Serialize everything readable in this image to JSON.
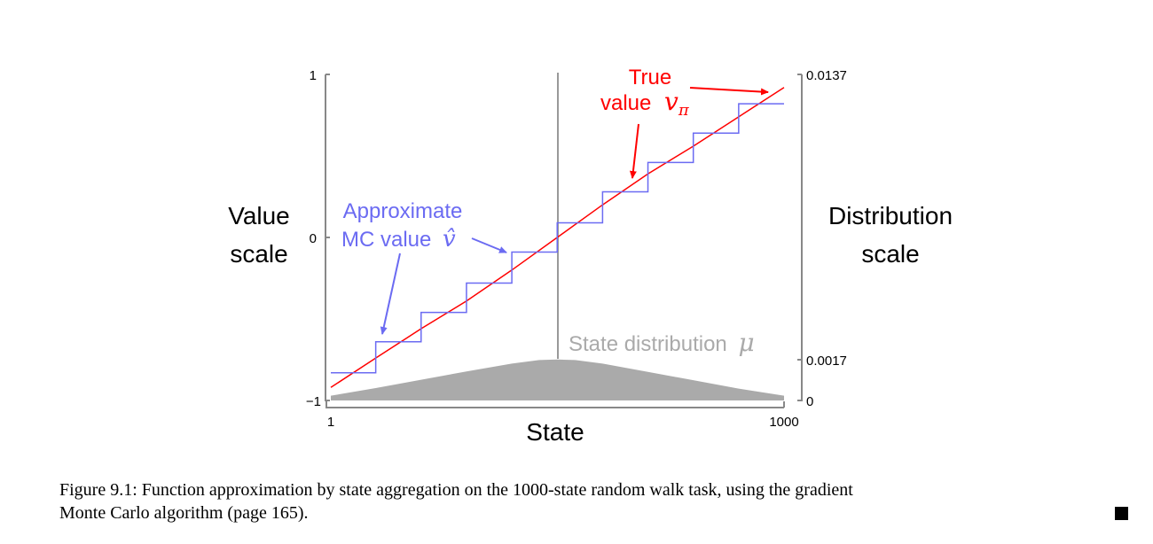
{
  "chart_data": {
    "type": "line",
    "xlabel": "State",
    "x_ticks": [
      "1",
      "1000"
    ],
    "xlim": [
      1,
      1000
    ],
    "left_axis": {
      "label_line1": "Value",
      "label_line2": "scale",
      "ticks": [
        "1",
        "0",
        "−1"
      ],
      "ylim": [
        -1,
        1
      ]
    },
    "right_axis": {
      "label_line1": "Distribution",
      "label_line2": "scale",
      "ticks": [
        "0.0137",
        "0.0017",
        "0"
      ],
      "tick_values": [
        0.0137,
        0.0017,
        0
      ],
      "ylim": [
        0,
        0.0137
      ]
    },
    "series": [
      {
        "name": "True value vπ",
        "label_line1": "True",
        "label_line2": "value",
        "label_math": "v",
        "label_sub": "π",
        "color": "#ff0000",
        "x": [
          1,
          100,
          200,
          300,
          400,
          500,
          600,
          700,
          800,
          900,
          1000
        ],
        "y": [
          -0.92,
          -0.74,
          -0.56,
          -0.39,
          -0.2,
          0,
          0.2,
          0.39,
          0.56,
          0.74,
          0.92
        ]
      },
      {
        "name": "Approximate MC value v̂",
        "label_line1": "Approximate",
        "label_line2": "MC value",
        "label_math": "v̂",
        "color": "#6b6bf2",
        "step_edges": [
          1,
          100,
          200,
          300,
          400,
          500,
          600,
          700,
          800,
          900,
          1000
        ],
        "step_values": [
          -0.83,
          -0.64,
          -0.46,
          -0.28,
          -0.09,
          0.09,
          0.28,
          0.46,
          0.64,
          0.82
        ]
      },
      {
        "name": "State distribution μ",
        "label_text": "State distribution",
        "label_math": "μ",
        "color": "#aaaaaa",
        "axis": "right",
        "x": [
          1,
          100,
          200,
          300,
          400,
          460,
          500,
          540,
          600,
          700,
          800,
          900,
          1000
        ],
        "y": [
          0.0002,
          0.00052,
          0.00087,
          0.00122,
          0.00155,
          0.0017,
          0.00172,
          0.0017,
          0.00155,
          0.0012,
          0.00085,
          0.0005,
          0.0002
        ]
      }
    ],
    "legend": "none"
  },
  "caption": {
    "line1": "Figure 9.1: Function approximation by state aggregation on the 1000-state random walk task, using the gradient",
    "line2": "Monte Carlo algorithm (page 165)."
  },
  "colors": {
    "axis": "#888888",
    "true_value": "#ff0000",
    "approx": "#6b6bf2",
    "distribution": "#aaaaaa"
  }
}
